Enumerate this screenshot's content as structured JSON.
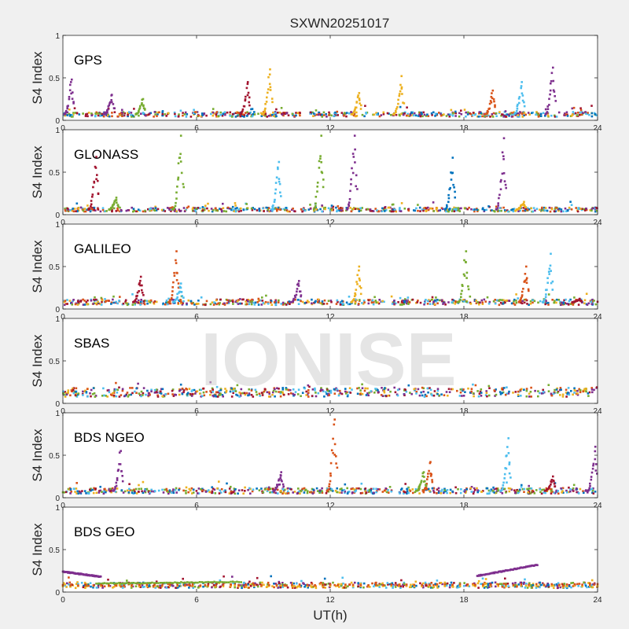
{
  "figure": {
    "title": "SXWN20251017",
    "xlabel": "UT(h)",
    "watermark": "IONISE",
    "series_colors": [
      "#0072BD",
      "#D95319",
      "#EDB120",
      "#7E2F8E",
      "#77AC30",
      "#4DBEEE",
      "#A2142F"
    ]
  },
  "chart_data": [
    {
      "type": "scatter",
      "panel_label": "GPS",
      "ylabel": "S4 Index",
      "xlim": [
        0,
        24
      ],
      "ylim": [
        0,
        1
      ],
      "xticks": [
        0,
        6,
        12,
        18,
        24
      ],
      "yticks": [
        0,
        0.5,
        1
      ],
      "baseline": 0.07,
      "spikes": [
        [
          0.4,
          0.48,
          3
        ],
        [
          2.2,
          0.3,
          3
        ],
        [
          3.6,
          0.25,
          4
        ],
        [
          8.3,
          0.45,
          6
        ],
        [
          9.3,
          0.6,
          2
        ],
        [
          13.3,
          0.32,
          2
        ],
        [
          15.2,
          0.52,
          2
        ],
        [
          19.3,
          0.35,
          1
        ],
        [
          20.6,
          0.45,
          5
        ],
        [
          22.0,
          0.62,
          3
        ]
      ]
    },
    {
      "type": "scatter",
      "panel_label": "GLONASS",
      "ylabel": "S4 Index",
      "xlim": [
        0,
        24
      ],
      "ylim": [
        0,
        1
      ],
      "xticks": [
        0,
        6,
        12,
        18,
        24
      ],
      "yticks": [
        0,
        0.5,
        1
      ],
      "baseline": 0.06,
      "spikes": [
        [
          1.5,
          0.68,
          6
        ],
        [
          2.4,
          0.2,
          4
        ],
        [
          5.3,
          0.93,
          4
        ],
        [
          9.7,
          0.62,
          5
        ],
        [
          11.6,
          0.93,
          4
        ],
        [
          13.1,
          0.93,
          3
        ],
        [
          17.5,
          0.67,
          0
        ],
        [
          19.8,
          0.9,
          3
        ],
        [
          20.7,
          0.15,
          2
        ]
      ]
    },
    {
      "type": "scatter",
      "panel_label": "GALILEO",
      "ylabel": "S4 Index",
      "xlim": [
        0,
        24
      ],
      "ylim": [
        0,
        1
      ],
      "xticks": [
        0,
        6,
        12,
        18,
        24
      ],
      "yticks": [
        0,
        0.5,
        1
      ],
      "baseline": 0.08,
      "spikes": [
        [
          3.5,
          0.38,
          6
        ],
        [
          5.1,
          0.68,
          1
        ],
        [
          5.3,
          0.3,
          5
        ],
        [
          10.6,
          0.33,
          3
        ],
        [
          13.3,
          0.5,
          2
        ],
        [
          18.1,
          0.68,
          4
        ],
        [
          20.8,
          0.5,
          1
        ],
        [
          21.9,
          0.65,
          5
        ],
        [
          23.2,
          0.12,
          6
        ]
      ]
    },
    {
      "type": "scatter",
      "panel_label": "SBAS",
      "ylabel": "S4 Index",
      "xlim": [
        0,
        24
      ],
      "ylim": [
        0,
        1
      ],
      "xticks": [
        0,
        6,
        12,
        18,
        24
      ],
      "yticks": [
        0,
        0.5,
        1
      ],
      "baseline": 0.13,
      "spikes": []
    },
    {
      "type": "scatter",
      "panel_label": "BDS NGEO",
      "ylabel": "S4 Index",
      "xlim": [
        0,
        24
      ],
      "ylim": [
        0,
        1
      ],
      "xticks": [
        0,
        6,
        12,
        18,
        24
      ],
      "yticks": [
        0,
        0.5,
        1
      ],
      "baseline": 0.08,
      "spikes": [
        [
          2.6,
          0.55,
          3
        ],
        [
          9.8,
          0.3,
          3
        ],
        [
          12.2,
          0.92,
          1
        ],
        [
          16.5,
          0.42,
          1
        ],
        [
          16.2,
          0.3,
          4
        ],
        [
          20.0,
          0.7,
          5
        ],
        [
          22.0,
          0.25,
          6
        ],
        [
          23.9,
          0.6,
          3
        ]
      ]
    },
    {
      "type": "scatter",
      "panel_label": "BDS GEO",
      "ylabel": "S4 Index",
      "xlim": [
        0,
        24
      ],
      "ylim": [
        0,
        1
      ],
      "xticks": [
        0,
        6,
        12,
        18,
        24
      ],
      "yticks": [
        0,
        0.5,
        1
      ],
      "baseline": 0.08,
      "tracks": [
        {
          "color_index": 3,
          "points": [
            [
              0,
              0.24
            ],
            [
              1.7,
              0.18
            ]
          ]
        },
        {
          "color_index": 4,
          "points": [
            [
              1.5,
              0.1
            ],
            [
              8.0,
              0.12
            ]
          ]
        },
        {
          "color_index": 3,
          "points": [
            [
              18.6,
              0.19
            ],
            [
              21.3,
              0.32
            ]
          ]
        },
        {
          "color_index": 2,
          "points": [
            [
              0,
              0.07
            ],
            [
              24,
              0.07
            ]
          ]
        },
        {
          "color_index": 1,
          "points": [
            [
              0,
              0.08
            ],
            [
              24,
              0.09
            ]
          ]
        }
      ],
      "spikes": []
    }
  ]
}
